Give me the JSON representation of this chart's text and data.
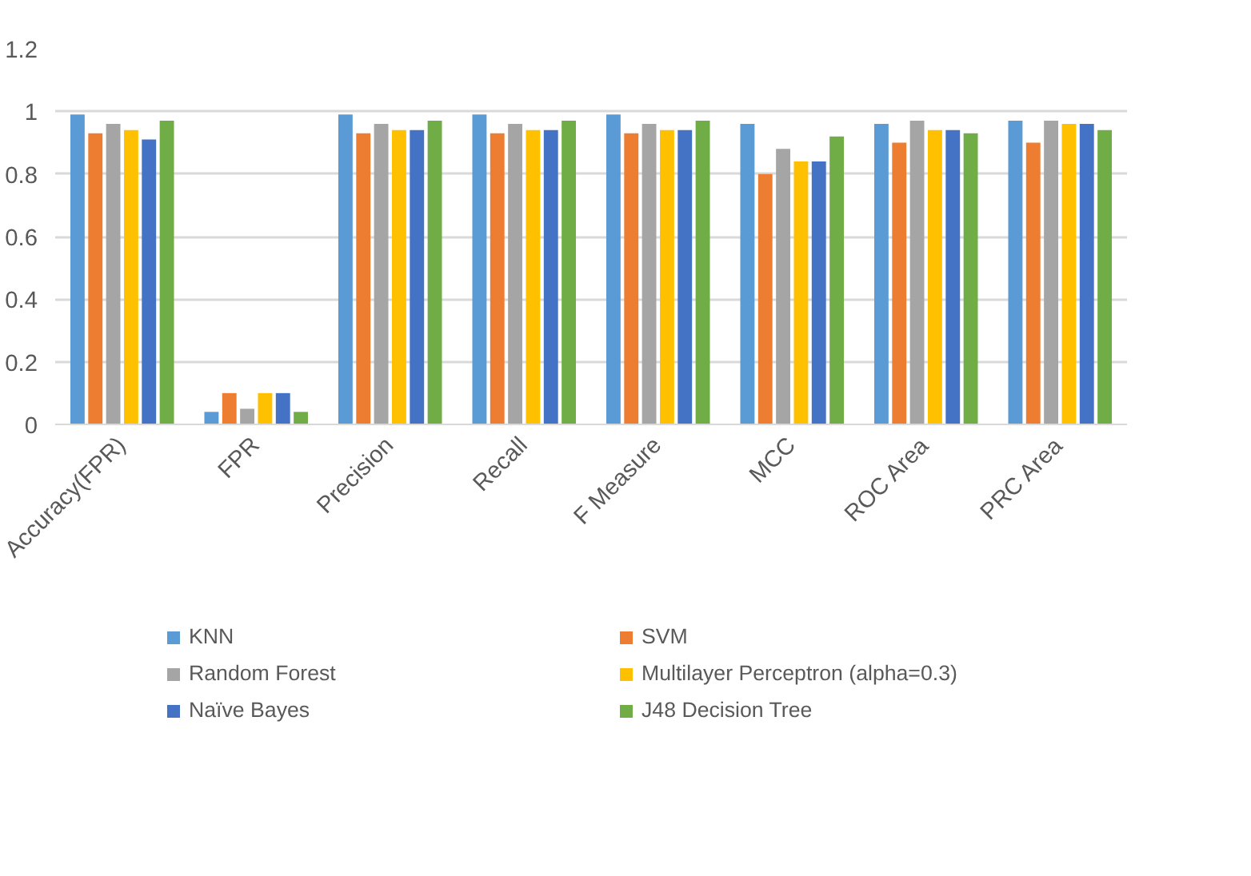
{
  "chart_data": {
    "type": "bar",
    "categories": [
      "Accuracy(FPR)",
      "FPR",
      "Precision",
      "Recall",
      "F Measure",
      "MCC",
      "ROC Area",
      "PRC Area"
    ],
    "series": [
      {
        "name": "KNN",
        "color": "#5b9bd5",
        "values": [
          0.99,
          0.04,
          0.99,
          0.99,
          0.99,
          0.96,
          0.96,
          0.97
        ]
      },
      {
        "name": "SVM",
        "color": "#ed7d31",
        "values": [
          0.93,
          0.1,
          0.93,
          0.93,
          0.93,
          0.8,
          0.9,
          0.9
        ]
      },
      {
        "name": "Random Forest",
        "color": "#a5a5a5",
        "values": [
          0.96,
          0.05,
          0.96,
          0.96,
          0.96,
          0.88,
          0.97,
          0.97
        ]
      },
      {
        "name": "Multilayer Perceptron (alpha=0.3)",
        "color": "#ffc000",
        "values": [
          0.94,
          0.1,
          0.94,
          0.94,
          0.94,
          0.84,
          0.94,
          0.96
        ]
      },
      {
        "name": "Naïve Bayes",
        "color": "#4472c4",
        "values": [
          0.91,
          0.1,
          0.94,
          0.94,
          0.94,
          0.84,
          0.94,
          0.96
        ]
      },
      {
        "name": "J48 Decision Tree",
        "color": "#70ad47",
        "values": [
          0.97,
          0.04,
          0.97,
          0.97,
          0.97,
          0.92,
          0.93,
          0.94
        ]
      }
    ],
    "ylim": [
      0,
      1.2
    ],
    "yticks": [
      0,
      0.2,
      0.4,
      0.6,
      0.8,
      1,
      1.2
    ],
    "grid": "y",
    "legend": "bottom"
  }
}
